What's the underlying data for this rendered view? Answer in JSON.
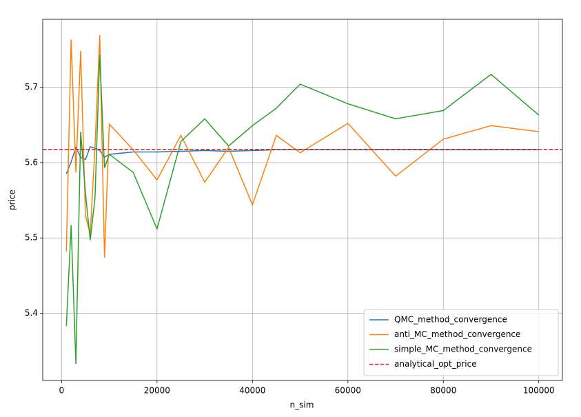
{
  "chart_data": {
    "type": "line",
    "xlabel": "n_sim",
    "ylabel": "price",
    "x": [
      1000,
      2000,
      3000,
      4000,
      5000,
      6000,
      7000,
      8000,
      9000,
      10000,
      15000,
      20000,
      25000,
      30000,
      35000,
      40000,
      45000,
      50000,
      60000,
      70000,
      80000,
      90000,
      100000
    ],
    "series": [
      {
        "name": "QMC_method_convergence",
        "color": "#1f77b4",
        "values": [
          5.585,
          5.601,
          5.62,
          5.607,
          5.604,
          5.621,
          5.619,
          5.616,
          5.607,
          5.611,
          5.614,
          5.614,
          5.615,
          5.616,
          5.615,
          5.616,
          5.617,
          5.617,
          5.617,
          5.617,
          5.617,
          5.617,
          5.617
        ]
      },
      {
        "name": "anti_MC_method_convergence",
        "color": "#ff7f0e",
        "values": [
          5.482,
          5.763,
          5.587,
          5.748,
          5.53,
          5.505,
          5.62,
          5.769,
          5.474,
          5.651,
          5.617,
          5.577,
          5.636,
          5.574,
          5.62,
          5.544,
          5.636,
          5.613,
          5.652,
          5.582,
          5.631,
          5.649,
          5.641
        ]
      },
      {
        "name": "simple_MC_method_convergence",
        "color": "#2ca02c",
        "values": [
          5.383,
          5.517,
          5.333,
          5.641,
          5.56,
          5.497,
          5.553,
          5.743,
          5.593,
          5.611,
          5.587,
          5.512,
          5.628,
          5.658,
          5.622,
          5.649,
          5.672,
          5.704,
          5.678,
          5.658,
          5.669,
          5.717,
          5.663
        ]
      }
    ],
    "hlines": [
      {
        "name": "analytical_opt_price",
        "color": "#d62728",
        "value": 5.6175,
        "style": "dashed"
      }
    ],
    "xlim": [
      -3950,
      104950
    ],
    "ylim": [
      5.311,
      5.79
    ],
    "xticks": [
      0,
      20000,
      40000,
      60000,
      80000,
      100000
    ],
    "yticks": [
      5.4,
      5.5,
      5.6,
      5.7
    ],
    "grid": true,
    "legend": "lower right"
  }
}
